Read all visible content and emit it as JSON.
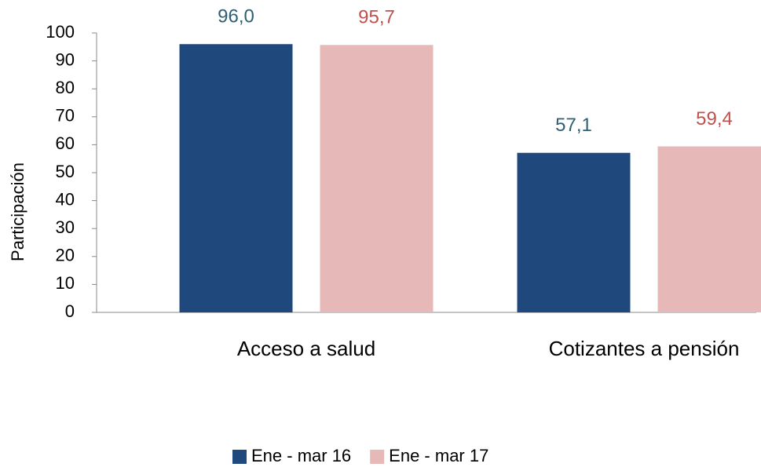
{
  "chart_data": {
    "type": "bar",
    "y_label": "Participación",
    "categories": [
      "Acceso a salud",
      "Cotizantes a pensión"
    ],
    "series": [
      {
        "name": "Ene - mar 16",
        "color": "#1f497d",
        "label_color": "#2e5f73",
        "values": [
          96.0,
          57.1
        ],
        "value_labels": [
          "96,0",
          "57,1"
        ]
      },
      {
        "name": "Ene - mar 17",
        "color": "#e6b9b8",
        "label_color": "#c0504d",
        "values": [
          95.7,
          59.4
        ],
        "value_labels": [
          "95,7",
          "59,4"
        ]
      }
    ],
    "ylim": [
      0,
      100
    ],
    "yticks": [
      0,
      10,
      20,
      30,
      40,
      50,
      60,
      70,
      80,
      90,
      100
    ],
    "grid": false,
    "legend": "bottom"
  }
}
